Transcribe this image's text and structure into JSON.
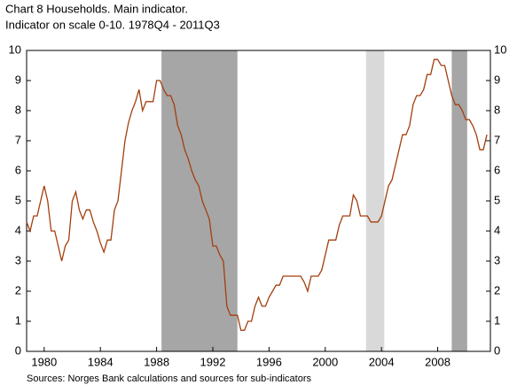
{
  "chart_data": {
    "type": "line",
    "title": "Chart 8 Households. Main indicator.",
    "subtitle": "Indicator on scale 0-10. 1978Q4 - 2011Q3",
    "source": "Sources: Norges Bank calculations and sources for sub-indicators",
    "x": [
      1978.75,
      1979,
      1979.25,
      1979.5,
      1979.75,
      1980,
      1980.25,
      1980.5,
      1980.75,
      1981,
      1981.25,
      1981.5,
      1981.75,
      1982,
      1982.25,
      1982.5,
      1982.75,
      1983,
      1983.25,
      1983.5,
      1983.75,
      1984,
      1984.25,
      1984.5,
      1984.75,
      1985,
      1985.25,
      1985.5,
      1985.75,
      1986,
      1986.25,
      1986.5,
      1986.75,
      1987,
      1987.25,
      1987.5,
      1987.75,
      1988,
      1988.25,
      1988.5,
      1988.75,
      1989,
      1989.25,
      1989.5,
      1989.75,
      1990,
      1990.25,
      1990.5,
      1990.75,
      1991,
      1991.25,
      1991.5,
      1991.75,
      1992,
      1992.25,
      1992.5,
      1992.75,
      1993,
      1993.25,
      1993.5,
      1993.75,
      1994,
      1994.25,
      1994.5,
      1994.75,
      1995,
      1995.25,
      1995.5,
      1995.75,
      1996,
      1996.25,
      1996.5,
      1996.75,
      1997,
      1997.25,
      1997.5,
      1997.75,
      1998,
      1998.25,
      1998.5,
      1998.75,
      1999,
      1999.25,
      1999.5,
      1999.75,
      2000,
      2000.25,
      2000.5,
      2000.75,
      2001,
      2001.25,
      2001.5,
      2001.75,
      2002,
      2002.25,
      2002.5,
      2002.75,
      2003,
      2003.25,
      2003.5,
      2003.75,
      2004,
      2004.25,
      2004.5,
      2004.75,
      2005,
      2005.25,
      2005.5,
      2005.75,
      2006,
      2006.25,
      2006.5,
      2006.75,
      2007,
      2007.25,
      2007.5,
      2007.75,
      2008,
      2008.25,
      2008.5,
      2008.75,
      2009,
      2009.25,
      2009.5,
      2009.75,
      2010,
      2010.25,
      2010.5,
      2010.75,
      2011,
      2011.25,
      2011.5
    ],
    "series": [
      {
        "color": "#a33f0e",
        "values": [
          4.3,
          4.0,
          4.5,
          4.5,
          5.0,
          5.5,
          5.0,
          4.0,
          4.0,
          3.5,
          3.0,
          3.5,
          3.7,
          5.0,
          5.3,
          4.7,
          4.4,
          4.7,
          4.7,
          4.3,
          4.0,
          3.6,
          3.3,
          3.7,
          3.7,
          4.7,
          5.0,
          6.0,
          7.0,
          7.6,
          8.0,
          8.3,
          8.7,
          8.0,
          8.3,
          8.3,
          8.3,
          9.0,
          9.0,
          8.7,
          8.5,
          8.5,
          8.2,
          7.5,
          7.2,
          6.7,
          6.4,
          6.0,
          5.7,
          5.5,
          5.0,
          4.7,
          4.4,
          3.5,
          3.5,
          3.2,
          3.0,
          1.5,
          1.2,
          1.2,
          1.2,
          0.7,
          0.7,
          1.0,
          1.0,
          1.5,
          1.8,
          1.5,
          1.5,
          1.8,
          2.0,
          2.2,
          2.2,
          2.5,
          2.5,
          2.5,
          2.5,
          2.5,
          2.5,
          2.3,
          2.0,
          2.5,
          2.5,
          2.5,
          2.7,
          3.2,
          3.7,
          3.7,
          3.7,
          4.2,
          4.5,
          4.5,
          4.5,
          5.2,
          5.0,
          4.5,
          4.5,
          4.5,
          4.3,
          4.3,
          4.3,
          4.5,
          5.0,
          5.5,
          5.7,
          6.2,
          6.7,
          7.2,
          7.2,
          7.5,
          8.2,
          8.5,
          8.5,
          8.7,
          9.2,
          9.2,
          9.7,
          9.7,
          9.5,
          9.5,
          9.0,
          8.5,
          8.2,
          8.2,
          8.0,
          7.7,
          7.7,
          7.5,
          7.2,
          6.7,
          6.7,
          7.2
        ]
      }
    ],
    "shaded_periods": [
      {
        "start": 1988.35,
        "end": 1993.75,
        "color": "#a6a6a6"
      },
      {
        "start": 2002.9,
        "end": 2004.2,
        "color": "#d9d9d9"
      },
      {
        "start": 2009.0,
        "end": 2010.1,
        "color": "#a6a6a6"
      }
    ],
    "xlim": [
      1978.75,
      2011.75
    ],
    "xticks": [
      1980,
      1984,
      1988,
      1992,
      1996,
      2000,
      2004,
      2008
    ],
    "ylim": [
      0,
      10
    ],
    "yticks": [
      0,
      1,
      2,
      3,
      4,
      5,
      6,
      7,
      8,
      9,
      10
    ],
    "y2lim": [
      0,
      10
    ],
    "y2ticks": [
      0,
      1,
      2,
      3,
      4,
      5,
      6,
      7,
      8,
      9,
      10
    ]
  }
}
